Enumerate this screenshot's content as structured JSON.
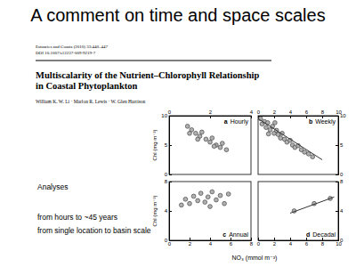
{
  "slide": {
    "title": "A comment on time and space scales",
    "citation": [
      "Estuaries and Coasts (2010) 33:440–447",
      "DOI 10.1007/s12237-009-9219-7"
    ],
    "paper_title": [
      "Multiscalarity of the Nutrient–Chlorophyll Relationship",
      "in Coastal Phytoplankton"
    ],
    "authors": "William K. W. Li · Marlon R. Lewis · W. Glen Harrison",
    "notes": [
      "Analyses",
      "from hours to ~45 years",
      "from single location to basin scale"
    ]
  },
  "figure": {
    "xlabel": "NO₃ (mmol m⁻³)",
    "ylabel": "Chl (mg m⁻³)"
  },
  "chart_data": [
    {
      "type": "scatter",
      "label": "a",
      "title": "Hourly",
      "xlim": [
        0,
        4
      ],
      "xticks": [
        0,
        2,
        4
      ],
      "ylim": [
        0,
        10
      ],
      "yticks": [
        0,
        5,
        10
      ],
      "series": [
        {
          "type": "scatter",
          "marker": "circle",
          "color": "#b0b0b0",
          "x": [
            0.9,
            1.1,
            1.3,
            1.5,
            1.6,
            1.8,
            2.0,
            2.1,
            2.3,
            2.5,
            2.6,
            2.8,
            1.0,
            1.4,
            2.2
          ],
          "values": [
            8.2,
            7.6,
            7.0,
            6.5,
            7.2,
            6.0,
            5.5,
            6.2,
            5.0,
            4.6,
            5.3,
            4.2,
            7.0,
            6.0,
            4.8
          ]
        }
      ]
    },
    {
      "type": "scatter",
      "label": "b",
      "title": "Weekly",
      "xlim": [
        0,
        10
      ],
      "xticks": [
        0,
        2,
        4,
        6,
        8,
        10
      ],
      "ylim": [
        0,
        10
      ],
      "yticks": [
        0,
        5,
        10
      ],
      "series": [
        {
          "type": "scatter",
          "marker": "circle",
          "color": "#b0b0b0",
          "x": [
            0.3,
            0.5,
            0.8,
            1.0,
            1.2,
            1.5,
            1.8,
            2.0,
            2.3,
            2.5,
            2.8,
            3.0,
            3.3,
            3.6,
            4.0,
            4.3,
            4.6,
            5.0,
            5.4,
            5.8,
            6.3,
            6.8,
            1.3,
            2.1
          ],
          "values": [
            9.5,
            8.6,
            9.0,
            8.0,
            8.8,
            7.6,
            8.2,
            7.0,
            7.5,
            6.8,
            6.2,
            7.0,
            6.0,
            5.5,
            5.8,
            5.0,
            4.6,
            4.9,
            4.2,
            3.8,
            3.5,
            3.0,
            6.9,
            8.8
          ]
        },
        {
          "type": "line",
          "line_style": "solid",
          "color": "#333333",
          "x": [
            0,
            8
          ],
          "values": [
            9.5,
            2.5
          ]
        }
      ]
    },
    {
      "type": "scatter",
      "label": "c",
      "title": "Annual",
      "xlim": [
        0,
        8
      ],
      "xticks": [
        0,
        2,
        4,
        6,
        8
      ],
      "ylim": [
        0,
        8
      ],
      "yticks": [
        0,
        4,
        8
      ],
      "series": [
        {
          "type": "scatter",
          "marker": "circle",
          "color": "#b0b0b0",
          "x": [
            1.2,
            1.6,
            2.0,
            2.4,
            2.8,
            3.1,
            3.5,
            3.8,
            4.2,
            4.6,
            5.0,
            5.4,
            5.8,
            4.0
          ],
          "values": [
            4.8,
            5.6,
            5.0,
            6.0,
            5.4,
            6.4,
            5.2,
            5.9,
            6.6,
            5.5,
            6.1,
            5.0,
            6.3,
            4.6
          ]
        }
      ]
    },
    {
      "type": "scatter",
      "label": "d",
      "title": "Decadal",
      "xlim": [
        0,
        10
      ],
      "xticks": [
        0,
        2,
        4,
        6,
        8,
        10
      ],
      "ylim": [
        0,
        8
      ],
      "yticks": [
        0,
        4,
        8
      ],
      "series": [
        {
          "type": "scatter",
          "marker": "circle",
          "color": "#b0b0b0",
          "x": [
            4.5,
            7.0,
            9.0
          ],
          "values": [
            4.0,
            5.0,
            5.7
          ]
        },
        {
          "type": "line",
          "line_style": "solid",
          "color": "#333333",
          "x": [
            4,
            9.5
          ],
          "values": [
            3.7,
            5.9
          ]
        }
      ]
    }
  ]
}
